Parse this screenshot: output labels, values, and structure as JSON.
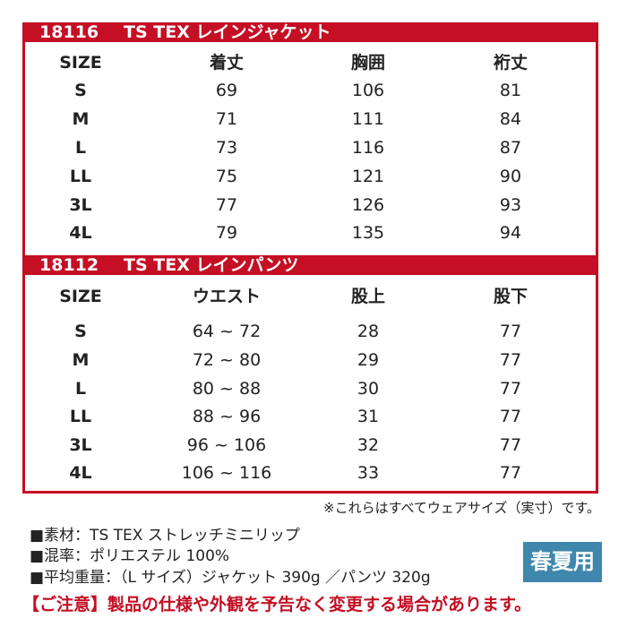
{
  "jacket": {
    "code": "18116",
    "name": "TS TEX レインジャケット",
    "headers": [
      "SIZE",
      "着丈",
      "胸囲",
      "裄丈"
    ],
    "rows": [
      [
        "S",
        "69",
        "106",
        "81"
      ],
      [
        "M",
        "71",
        "111",
        "84"
      ],
      [
        "L",
        "73",
        "116",
        "87"
      ],
      [
        "LL",
        "75",
        "121",
        "90"
      ],
      [
        "3L",
        "77",
        "126",
        "93"
      ],
      [
        "4L",
        "79",
        "135",
        "94"
      ]
    ]
  },
  "pants": {
    "code": "18112",
    "name": "TS TEX レインパンツ",
    "headers": [
      "SIZE",
      "ウエスト",
      "股上",
      "股下"
    ],
    "rows": [
      [
        "S",
        "64 ~ 72",
        "28",
        "77"
      ],
      [
        "M",
        "72 ~ 80",
        "29",
        "77"
      ],
      [
        "L",
        "80 ~ 88",
        "30",
        "77"
      ],
      [
        "LL",
        "88 ~ 96",
        "31",
        "77"
      ],
      [
        "3L",
        "96 ~ 106",
        "32",
        "77"
      ],
      [
        "4L",
        "106 ~ 116",
        "33",
        "77"
      ]
    ]
  },
  "note": "※これらはすべてウェアサイズ（実寸）です。",
  "specs": [
    "■素材：TS TEX ストレッチミニリップ",
    "■混率：ポリエステル 100%",
    "■平均重量：（L サイズ）ジャケット 390g ／パンツ 320g"
  ],
  "badge": "春夏用",
  "warning": "【ご注意】製品の仕様や外観を予告なく変更する場合があります。",
  "colors": {
    "accent": "#c40f24",
    "badge": "#3f87ad"
  }
}
